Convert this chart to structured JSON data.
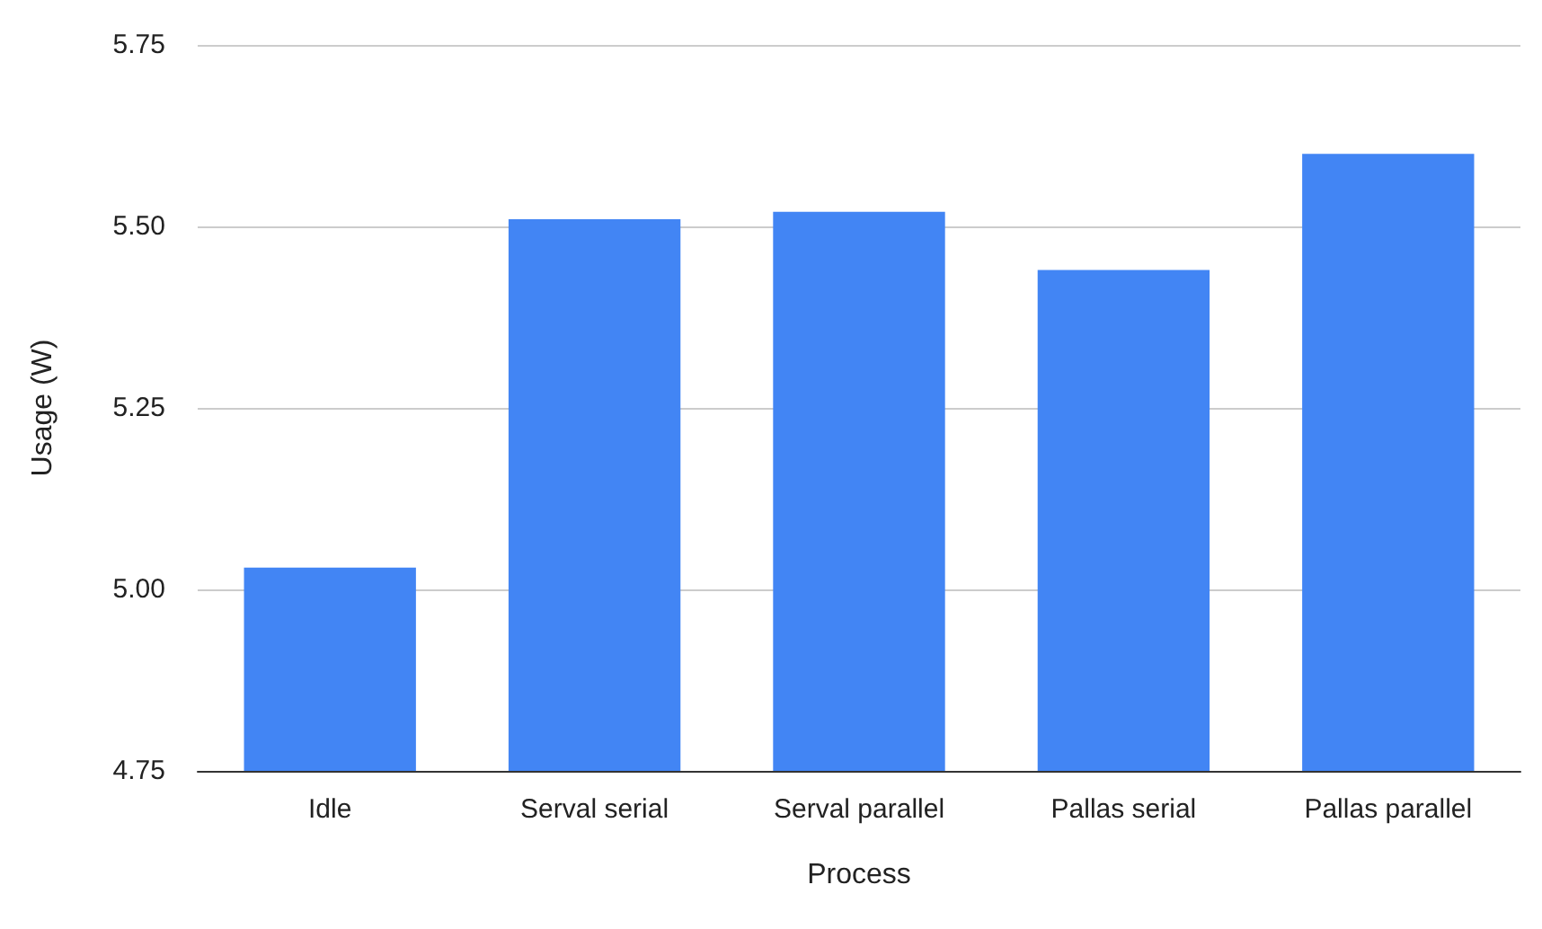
{
  "chart_data": {
    "type": "bar",
    "xlabel": "Process",
    "ylabel": "Usage (W)",
    "categories": [
      "Idle",
      "Serval serial",
      "Serval parallel",
      "Pallas serial",
      "Pallas parallel"
    ],
    "values": [
      5.03,
      5.51,
      5.52,
      5.44,
      5.6
    ],
    "color": "#4285f4",
    "ylim": [
      4.75,
      5.75
    ],
    "yticks": [
      {
        "value": 4.75,
        "label": "4.75"
      },
      {
        "value": 5,
        "label": "5.00"
      },
      {
        "value": 5.25,
        "label": "5.25"
      },
      {
        "value": 5.5,
        "label": "5.50"
      },
      {
        "value": 5.75,
        "label": "5.75"
      }
    ],
    "grid": "y"
  }
}
